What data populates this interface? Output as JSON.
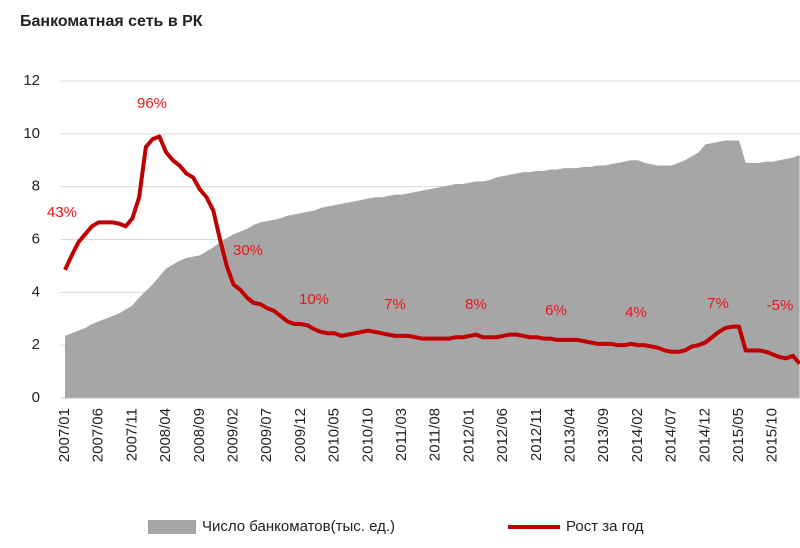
{
  "chart_data": {
    "type": "area_line",
    "title": "Банкоматная  сеть в РК",
    "categories": [
      "2007/01",
      null,
      null,
      null,
      null,
      "2007/06",
      null,
      null,
      null,
      null,
      "2007/11",
      null,
      null,
      null,
      null,
      "2008/04",
      null,
      null,
      null,
      null,
      "2008/09",
      null,
      null,
      null,
      null,
      "2009/02",
      null,
      null,
      null,
      null,
      "2009/07",
      null,
      null,
      null,
      null,
      "2009/12",
      null,
      null,
      null,
      null,
      "2010/05",
      null,
      null,
      null,
      null,
      "2010/10",
      null,
      null,
      null,
      null,
      "2011/03",
      null,
      null,
      null,
      null,
      "2011/08",
      null,
      null,
      null,
      null,
      "2012/01",
      null,
      null,
      null,
      null,
      "2012/06",
      null,
      null,
      null,
      null,
      "2012/11",
      null,
      null,
      null,
      null,
      "2013/04",
      null,
      null,
      null,
      null,
      "2013/09",
      null,
      null,
      null,
      null,
      "2014/02",
      null,
      null,
      null,
      null,
      "2014/07",
      null,
      null,
      null,
      null,
      "2014/12",
      null,
      null,
      null,
      null,
      "2015/05",
      null,
      null,
      null,
      null,
      "2015/10",
      null,
      null,
      null,
      null
    ],
    "series": [
      {
        "name": "Число банкоматов(тыс. ед.)",
        "kind": "area",
        "color": "#a6a6a6",
        "values": [
          2.35,
          2.45,
          2.55,
          2.65,
          2.8,
          2.9,
          3.0,
          3.1,
          3.2,
          3.35,
          3.5,
          3.8,
          4.05,
          4.3,
          4.6,
          4.9,
          5.05,
          5.2,
          5.3,
          5.35,
          5.4,
          5.55,
          5.7,
          5.9,
          6.05,
          6.2,
          6.3,
          6.4,
          6.55,
          6.65,
          6.7,
          6.75,
          6.8,
          6.9,
          6.95,
          7.0,
          7.05,
          7.1,
          7.2,
          7.25,
          7.3,
          7.35,
          7.4,
          7.45,
          7.5,
          7.55,
          7.6,
          7.6,
          7.65,
          7.7,
          7.7,
          7.75,
          7.8,
          7.85,
          7.9,
          7.95,
          8.0,
          8.05,
          8.1,
          8.1,
          8.15,
          8.2,
          8.2,
          8.25,
          8.35,
          8.4,
          8.45,
          8.5,
          8.55,
          8.55,
          8.6,
          8.6,
          8.65,
          8.65,
          8.7,
          8.7,
          8.7,
          8.75,
          8.75,
          8.8,
          8.8,
          8.85,
          8.9,
          8.95,
          9.0,
          9.0,
          8.9,
          8.85,
          8.8,
          8.8,
          8.8,
          8.9,
          9.0,
          9.15,
          9.3,
          9.6,
          9.65,
          9.7,
          9.75,
          9.75,
          9.75,
          8.9,
          8.9,
          8.9,
          8.95,
          8.95,
          9.0,
          9.05,
          9.1,
          9.2
        ]
      },
      {
        "name": "Рост за год",
        "kind": "line",
        "color": "#c00000",
        "values": [
          4.85,
          5.4,
          5.9,
          6.2,
          6.5,
          6.65,
          6.65,
          6.65,
          6.6,
          6.5,
          6.8,
          7.6,
          9.5,
          9.8,
          9.9,
          9.3,
          9.0,
          8.8,
          8.5,
          8.35,
          7.9,
          7.6,
          7.1,
          6.0,
          5.0,
          4.3,
          4.1,
          3.8,
          3.6,
          3.55,
          3.4,
          3.3,
          3.1,
          2.9,
          2.8,
          2.8,
          2.75,
          2.6,
          2.5,
          2.45,
          2.45,
          2.35,
          2.4,
          2.45,
          2.5,
          2.55,
          2.5,
          2.45,
          2.4,
          2.35,
          2.35,
          2.35,
          2.3,
          2.25,
          2.25,
          2.25,
          2.25,
          2.25,
          2.3,
          2.3,
          2.35,
          2.4,
          2.3,
          2.3,
          2.3,
          2.35,
          2.4,
          2.4,
          2.35,
          2.3,
          2.3,
          2.25,
          2.25,
          2.2,
          2.2,
          2.2,
          2.2,
          2.15,
          2.1,
          2.05,
          2.05,
          2.05,
          2.0,
          2.0,
          2.05,
          2.0,
          2.0,
          1.95,
          1.9,
          1.8,
          1.75,
          1.75,
          1.8,
          1.95,
          2.0,
          2.1,
          2.3,
          2.5,
          2.65,
          2.7,
          2.7,
          1.8,
          1.8,
          1.8,
          1.75,
          1.65,
          1.55,
          1.5,
          1.6,
          1.3
        ]
      }
    ],
    "annotations": [
      "43%",
      "96%",
      "30%",
      "10%",
      "7%",
      "8%",
      "6%",
      "4%",
      "7%",
      "-5%"
    ],
    "ylim": [
      0,
      12
    ],
    "yticks": [
      0,
      2,
      4,
      6,
      8,
      10,
      12
    ],
    "grid": true
  }
}
